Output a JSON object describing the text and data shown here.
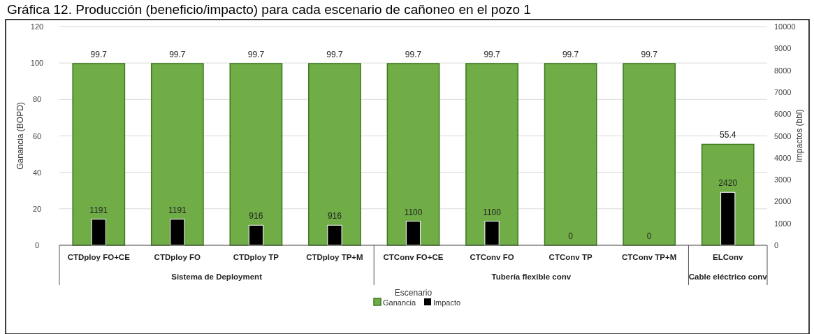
{
  "chart_data": {
    "type": "bar",
    "title": "Gráfica 12. Producción (beneficio/impacto) para cada escenario de cañoneo en el pozo 1",
    "xlabel": "Escenario",
    "ylabel": "Ganancia (BOPD)",
    "y2label": "Impactos (bbl)",
    "categories": [
      "CTDploy FO+CE",
      "CTDploy FO",
      "CTDploy TP",
      "CTDploy TP+M",
      "CTConv FO+CE",
      "CTConv FO",
      "CTConv TP",
      "CTConv TP+M",
      "ELConv"
    ],
    "series": [
      {
        "name": "Ganancia",
        "color": "#70ad47",
        "values": [
          99.7,
          99.7,
          99.7,
          99.7,
          99.7,
          99.7,
          99.7,
          99.7,
          55.4
        ]
      },
      {
        "name": "Impacto",
        "color": "#000000",
        "axis": "y2",
        "values": [
          1191,
          1191,
          916,
          916,
          1100,
          1100,
          0,
          0,
          2420
        ]
      }
    ],
    "ylim": [
      0,
      120
    ],
    "yticks": [
      0,
      20,
      40,
      60,
      80,
      100,
      120
    ],
    "y2lim": [
      0,
      10000
    ],
    "y2ticks": [
      0,
      1000,
      2000,
      3000,
      4000,
      5000,
      6000,
      7000,
      8000,
      9000,
      10000
    ],
    "annotations": [
      "Sistema de Deployment",
      "Tubería flexible conv",
      "Cable eléctrico conv"
    ],
    "data_labels": true,
    "grid": "y",
    "legend": "bottom"
  }
}
